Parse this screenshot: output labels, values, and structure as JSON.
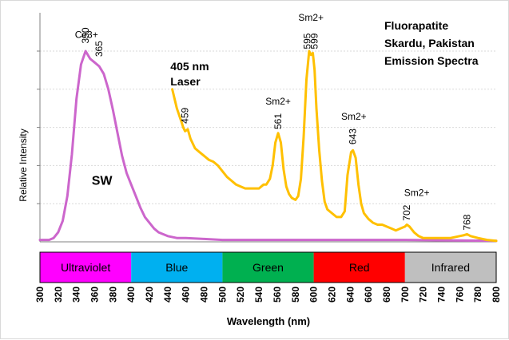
{
  "chart_data": {
    "type": "line",
    "title_lines": [
      "Fluorapatite",
      "Skardu, Pakistan",
      "Emission Spectra"
    ],
    "xlabel": "Wavelength (nm)",
    "ylabel": "Relative Intensity",
    "xlim": [
      300,
      800
    ],
    "ylim": [
      0,
      100
    ],
    "x_ticks": [
      300,
      320,
      340,
      360,
      380,
      400,
      420,
      440,
      460,
      480,
      500,
      520,
      540,
      560,
      580,
      600,
      620,
      640,
      660,
      680,
      700,
      720,
      740,
      760,
      780,
      800
    ],
    "y_tick_count": 5,
    "bands": [
      {
        "label": "Ultraviolet",
        "from": 300,
        "to": 400,
        "color": "#ff00ff"
      },
      {
        "label": "Blue",
        "from": 400,
        "to": 500,
        "color": "#00b0f0"
      },
      {
        "label": "Green",
        "from": 500,
        "to": 600,
        "color": "#00b050"
      },
      {
        "label": "Red",
        "from": 600,
        "to": 700,
        "color": "#ff0000"
      },
      {
        "label": "Infrared",
        "from": 700,
        "to": 800,
        "color": "#bfbfbf"
      }
    ],
    "series": [
      {
        "color": "#cc66cc",
        "points": [
          [
            300,
            1
          ],
          [
            310,
            1
          ],
          [
            315,
            2
          ],
          [
            320,
            5
          ],
          [
            325,
            11
          ],
          [
            330,
            24
          ],
          [
            335,
            46
          ],
          [
            340,
            75
          ],
          [
            345,
            93
          ],
          [
            350,
            100
          ],
          [
            355,
            96
          ],
          [
            360,
            94
          ],
          [
            365,
            92
          ],
          [
            370,
            88
          ],
          [
            375,
            80
          ],
          [
            380,
            69
          ],
          [
            385,
            57
          ],
          [
            390,
            45
          ],
          [
            395,
            36
          ],
          [
            400,
            30
          ],
          [
            405,
            24
          ],
          [
            410,
            18
          ],
          [
            415,
            13
          ],
          [
            420,
            10
          ],
          [
            425,
            7
          ],
          [
            430,
            5
          ],
          [
            440,
            3
          ],
          [
            450,
            2
          ],
          [
            460,
            2
          ],
          [
            480,
            1.5
          ],
          [
            500,
            1
          ],
          [
            600,
            1
          ],
          [
            700,
            1
          ],
          [
            800,
            0.5
          ]
        ]
      },
      {
        "color": "#ffc000",
        "points": [
          [
            445,
            80
          ],
          [
            450,
            70
          ],
          [
            455,
            63
          ],
          [
            457,
            60
          ],
          [
            459,
            58
          ],
          [
            462,
            59
          ],
          [
            465,
            54
          ],
          [
            470,
            49
          ],
          [
            475,
            47
          ],
          [
            480,
            45
          ],
          [
            485,
            43
          ],
          [
            490,
            42
          ],
          [
            495,
            40
          ],
          [
            500,
            37
          ],
          [
            505,
            34
          ],
          [
            510,
            32
          ],
          [
            515,
            30
          ],
          [
            520,
            29
          ],
          [
            525,
            28
          ],
          [
            530,
            28
          ],
          [
            535,
            28
          ],
          [
            540,
            28
          ],
          [
            545,
            30
          ],
          [
            548,
            30
          ],
          [
            552,
            33
          ],
          [
            555,
            40
          ],
          [
            558,
            52
          ],
          [
            561,
            57
          ],
          [
            564,
            52
          ],
          [
            567,
            38
          ],
          [
            570,
            29
          ],
          [
            573,
            25
          ],
          [
            576,
            23
          ],
          [
            580,
            22
          ],
          [
            583,
            24
          ],
          [
            586,
            33
          ],
          [
            589,
            55
          ],
          [
            592,
            85
          ],
          [
            595,
            100
          ],
          [
            597,
            98
          ],
          [
            599,
            99
          ],
          [
            601,
            90
          ],
          [
            603,
            70
          ],
          [
            606,
            48
          ],
          [
            609,
            32
          ],
          [
            612,
            21
          ],
          [
            615,
            17
          ],
          [
            620,
            15
          ],
          [
            625,
            13
          ],
          [
            630,
            13
          ],
          [
            634,
            16
          ],
          [
            637,
            35
          ],
          [
            641,
            47
          ],
          [
            643,
            48
          ],
          [
            646,
            44
          ],
          [
            649,
            30
          ],
          [
            652,
            20
          ],
          [
            655,
            15
          ],
          [
            660,
            12
          ],
          [
            665,
            10
          ],
          [
            670,
            9
          ],
          [
            675,
            9
          ],
          [
            680,
            8
          ],
          [
            685,
            7
          ],
          [
            690,
            6
          ],
          [
            695,
            7
          ],
          [
            700,
            8
          ],
          [
            702,
            9
          ],
          [
            705,
            8
          ],
          [
            710,
            5
          ],
          [
            715,
            3
          ],
          [
            720,
            2
          ],
          [
            730,
            2
          ],
          [
            740,
            2
          ],
          [
            750,
            2
          ],
          [
            760,
            3
          ],
          [
            765,
            3.5
          ],
          [
            768,
            4
          ],
          [
            772,
            3
          ],
          [
            780,
            2
          ],
          [
            790,
            1
          ],
          [
            800,
            0.5
          ]
        ]
      }
    ],
    "annotations": [
      {
        "text": "Ce3+",
        "x": 351,
        "y": 107,
        "rotate": false,
        "bold": false
      },
      {
        "text": "350",
        "x": 350,
        "y": 104,
        "rotate": true,
        "bold": false
      },
      {
        "text": "365",
        "x": 365,
        "y": 97,
        "rotate": true,
        "bold": false
      },
      {
        "text": "405 nm",
        "x": 443,
        "y": 90,
        "rotate": false,
        "bold": true
      },
      {
        "text": "Laser",
        "x": 443,
        "y": 82,
        "rotate": false,
        "bold": true
      },
      {
        "text": "459",
        "x": 459,
        "y": 62,
        "rotate": true,
        "bold": false
      },
      {
        "text": "SW",
        "x": 368,
        "y": 30,
        "rotate": false,
        "bold": true
      },
      {
        "text": "Sm2+",
        "x": 561,
        "y": 72,
        "rotate": false,
        "bold": false
      },
      {
        "text": "561",
        "x": 561,
        "y": 59,
        "rotate": true,
        "bold": false
      },
      {
        "text": "Sm2+",
        "x": 597,
        "y": 116,
        "rotate": false,
        "bold": false
      },
      {
        "text": "595",
        "x": 593,
        "y": 101,
        "rotate": true,
        "bold": false
      },
      {
        "text": "599",
        "x": 601,
        "y": 101,
        "rotate": true,
        "bold": false
      },
      {
        "text": "Sm2+",
        "x": 644,
        "y": 64,
        "rotate": false,
        "bold": false
      },
      {
        "text": "643",
        "x": 643,
        "y": 51,
        "rotate": true,
        "bold": false
      },
      {
        "text": "Sm2+",
        "x": 713,
        "y": 24,
        "rotate": false,
        "bold": false
      },
      {
        "text": "702",
        "x": 702,
        "y": 11,
        "rotate": true,
        "bold": false
      },
      {
        "text": "768",
        "x": 768,
        "y": 6,
        "rotate": true,
        "bold": false
      }
    ]
  }
}
